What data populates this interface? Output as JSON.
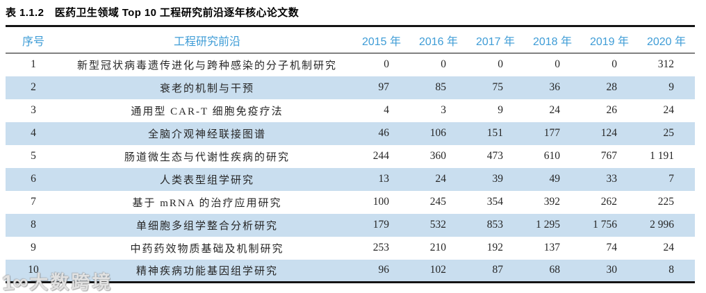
{
  "title": "表 1.1.2　医药卫生领域 Top 10 工程研究前沿逐年核心论文数",
  "colors": {
    "header_text": "#3E9CD6",
    "stripe": "#C9DEEF",
    "body_text": "#262626",
    "border": "#141414"
  },
  "table": {
    "columns": [
      "序号",
      "工程研究前沿",
      "2015 年",
      "2016 年",
      "2017 年",
      "2018 年",
      "2019 年",
      "2020 年"
    ],
    "rows": [
      {
        "no": "1",
        "front": "新型冠状病毒遗传进化与跨种感染的分子机制研究",
        "values": [
          "0",
          "0",
          "0",
          "0",
          "0",
          "312"
        ]
      },
      {
        "no": "2",
        "front": "衰老的机制与干预",
        "values": [
          "97",
          "85",
          "75",
          "36",
          "28",
          "9"
        ]
      },
      {
        "no": "3",
        "front": "通用型 CAR-T 细胞免疫疗法",
        "values": [
          "4",
          "3",
          "9",
          "24",
          "26",
          "24"
        ]
      },
      {
        "no": "4",
        "front": "全脑介观神经联接图谱",
        "values": [
          "46",
          "106",
          "151",
          "177",
          "124",
          "25"
        ]
      },
      {
        "no": "5",
        "front": "肠道微生态与代谢性疾病的研究",
        "values": [
          "244",
          "360",
          "473",
          "610",
          "767",
          "1 191"
        ]
      },
      {
        "no": "6",
        "front": "人类表型组学研究",
        "values": [
          "13",
          "24",
          "39",
          "49",
          "33",
          "7"
        ]
      },
      {
        "no": "7",
        "front": "基于 mRNA 的治疗应用研究",
        "values": [
          "100",
          "245",
          "354",
          "392",
          "262",
          "225"
        ]
      },
      {
        "no": "8",
        "front": "单细胞多组学整合分析研究",
        "values": [
          "179",
          "532",
          "853",
          "1 295",
          "1 756",
          "2 996"
        ]
      },
      {
        "no": "9",
        "front": "中药药效物质基础及机制研究",
        "values": [
          "253",
          "210",
          "192",
          "137",
          "74",
          "24"
        ]
      },
      {
        "no": "10",
        "front": "精神疾病功能基因组学研究",
        "values": [
          "96",
          "102",
          "87",
          "68",
          "30",
          "8"
        ]
      }
    ]
  },
  "watermark": {
    "logo": "1∞",
    "text": "大数跨境"
  }
}
